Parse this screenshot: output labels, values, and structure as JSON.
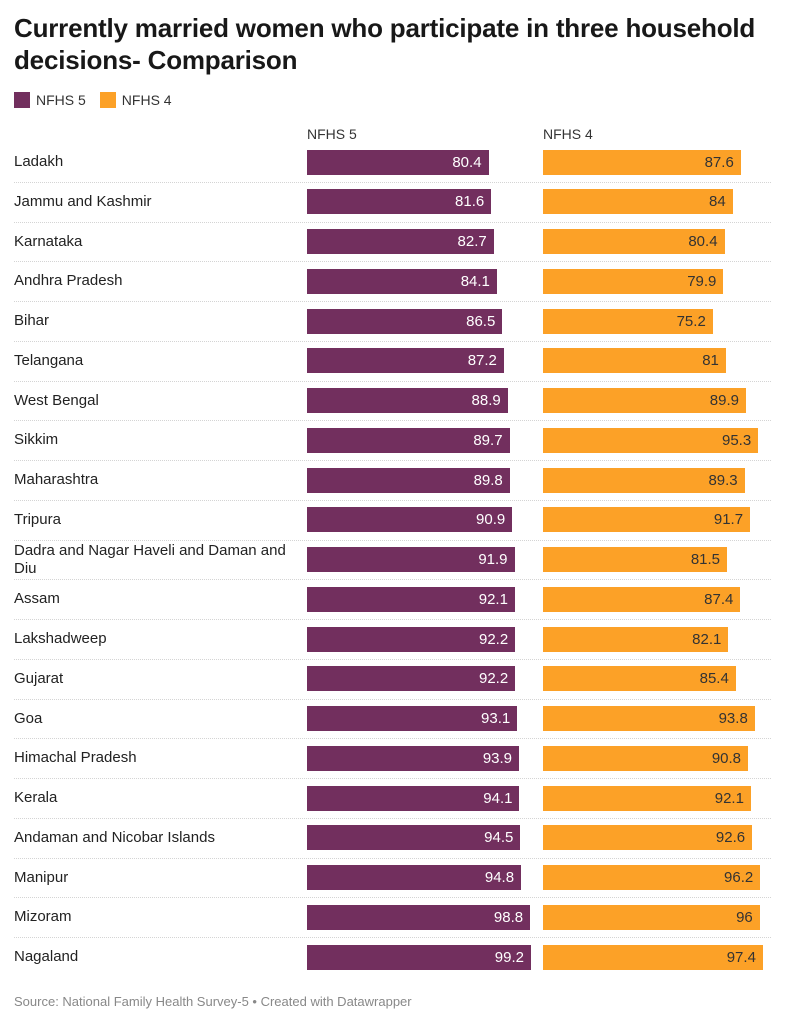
{
  "title": "Currently married women who participate in three household decisions- Comparison",
  "legend": [
    {
      "name": "NFHS 5",
      "color": "#722f5e"
    },
    {
      "name": "NFHS 4",
      "color": "#fca127"
    }
  ],
  "source": "Source: National Family Health Survey-5 • Created with Datawrapper",
  "chart_data": {
    "type": "bar",
    "title": "Currently married women who participate in three household decisions- Comparison",
    "column_headers": [
      "NFHS 5",
      "NFHS 4"
    ],
    "categories": [
      "Ladakh",
      "Jammu and Kashmir",
      "Karnataka",
      "Andhra Pradesh",
      "Bihar",
      "Telangana",
      "West Bengal",
      "Sikkim",
      "Maharashtra",
      "Tripura",
      "Dadra and Nagar Haveli and Daman and Diu",
      "Assam",
      "Lakshadweep",
      "Gujarat",
      "Goa",
      "Himachal Pradesh",
      "Kerala",
      "Andaman and Nicobar Islands",
      "Manipur",
      "Mizoram",
      "Nagaland"
    ],
    "series": [
      {
        "name": "NFHS 5",
        "color": "#722f5e",
        "values": [
          80.4,
          81.6,
          82.7,
          84.1,
          86.5,
          87.2,
          88.9,
          89.7,
          89.8,
          90.9,
          91.9,
          92.1,
          92.2,
          92.2,
          93.1,
          93.9,
          94.1,
          94.5,
          94.8,
          98.8,
          99.2
        ]
      },
      {
        "name": "NFHS 4",
        "color": "#fca127",
        "values": [
          87.6,
          84,
          80.4,
          79.9,
          75.2,
          81,
          89.9,
          95.3,
          89.3,
          91.7,
          81.5,
          87.4,
          82.1,
          85.4,
          93.8,
          90.8,
          92.1,
          92.6,
          96.2,
          96,
          97.4
        ]
      }
    ],
    "xlim": [
      0,
      100
    ],
    "legend_position": "top-left",
    "grid": false
  }
}
